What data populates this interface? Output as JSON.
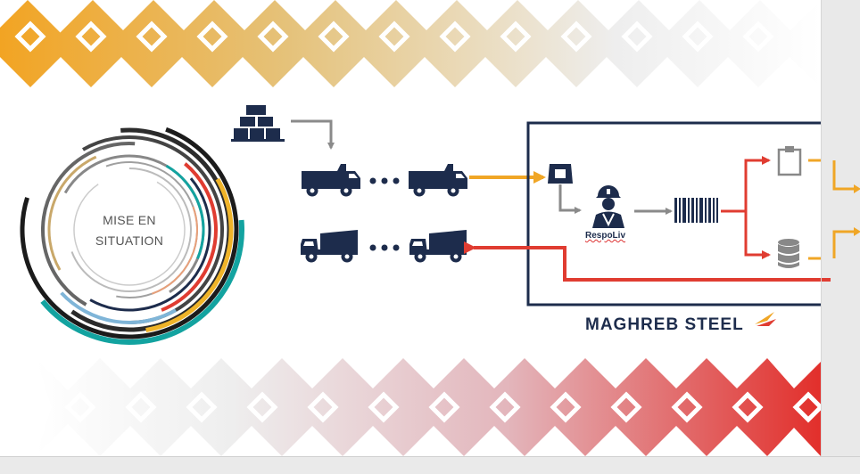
{
  "diagram": {
    "ring_label_line1": "MISE EN",
    "ring_label_line2": "SITUATION",
    "actor_label": "RespoLiv",
    "brand": "MAGHREB STEEL"
  },
  "icons": [
    "gold-bars-icon",
    "dump-truck-icon",
    "weighbridge-icon",
    "worker-icon",
    "barcode-icon",
    "clipboard-icon",
    "database-icon"
  ],
  "colors": {
    "navy": "#1d2c4c",
    "orange": "#f0a626",
    "red": "#e03c31",
    "gray_arrow": "#8a8a8a"
  }
}
